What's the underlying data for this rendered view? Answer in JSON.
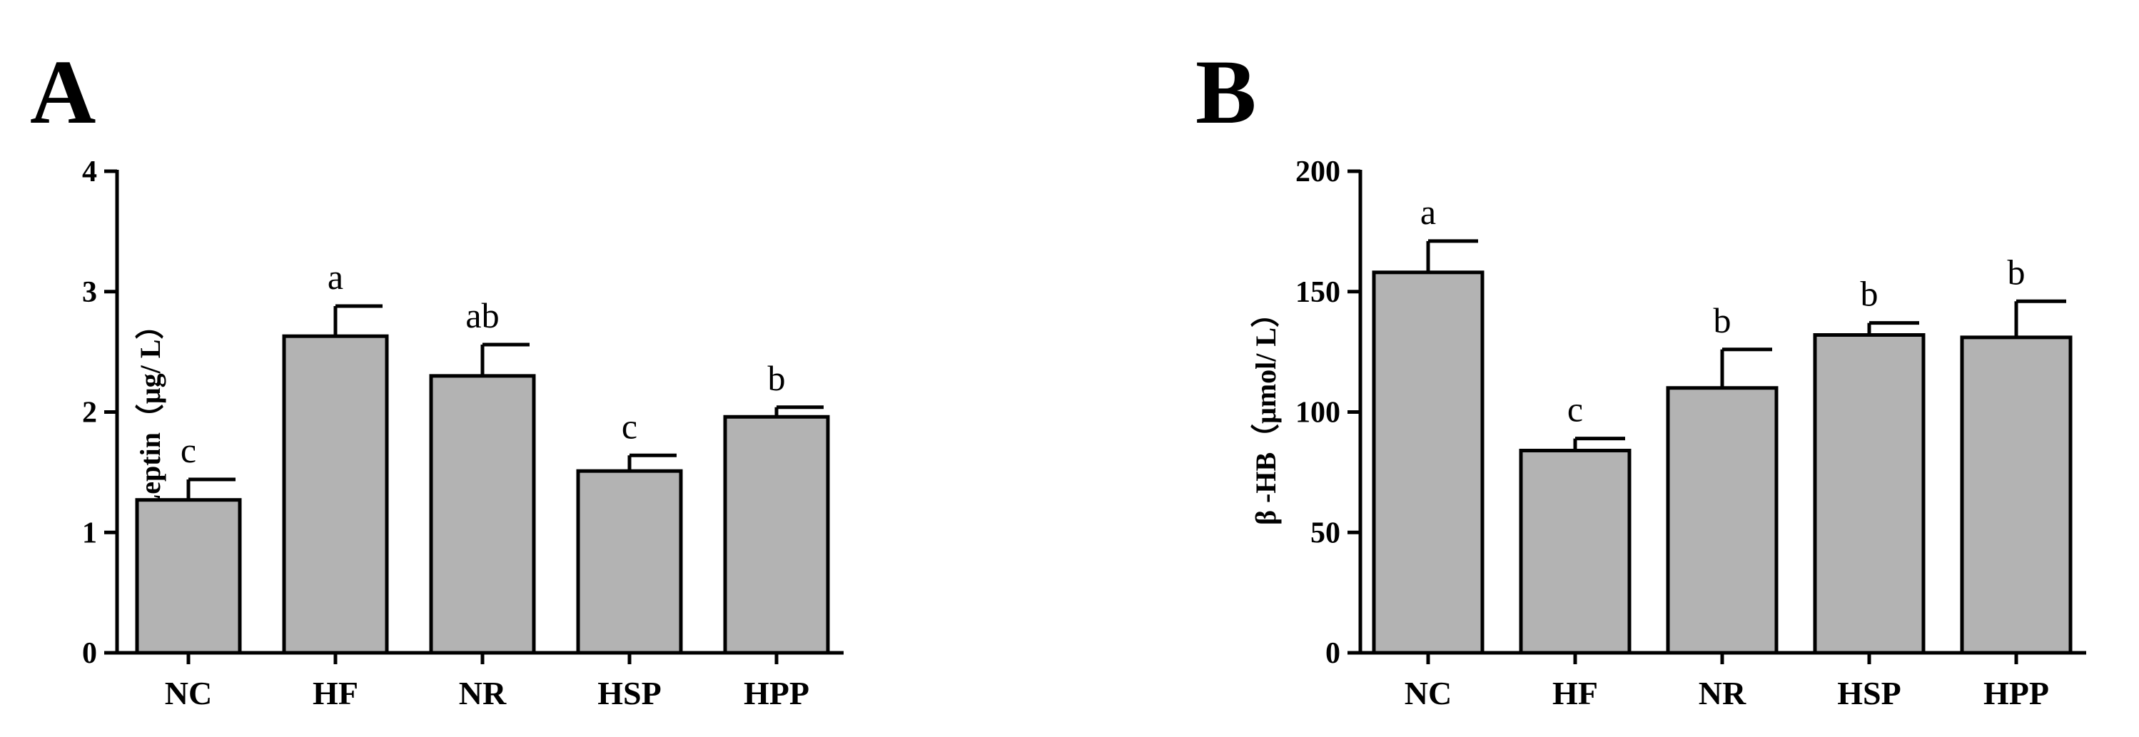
{
  "chart_data": [
    {
      "panel": "A",
      "type": "bar",
      "categories": [
        "NC",
        "HF",
        "NR",
        "HSP",
        "HPP"
      ],
      "values": [
        1.27,
        2.63,
        2.3,
        1.51,
        1.96
      ],
      "errors": [
        0.17,
        0.25,
        0.26,
        0.13,
        0.08
      ],
      "significance": [
        "c",
        "a",
        "ab",
        "c",
        "b"
      ],
      "ylabel": "Leptin（μg/ L）",
      "ylim": [
        0,
        4
      ],
      "yticks": [
        0,
        1,
        2,
        3,
        4
      ],
      "bar_color": "#b3b3b3",
      "grid": false
    },
    {
      "panel": "B",
      "type": "bar",
      "categories": [
        "NC",
        "HF",
        "NR",
        "HSP",
        "HPP"
      ],
      "values": [
        158,
        84,
        110,
        132,
        131
      ],
      "errors": [
        13,
        5,
        16,
        5,
        15
      ],
      "significance": [
        "a",
        "c",
        "b",
        "b",
        "b"
      ],
      "ylabel": "β -HB（μmol/ L）",
      "ylim": [
        0,
        200
      ],
      "yticks": [
        0,
        50,
        100,
        150,
        200
      ],
      "bar_color": "#b3b3b3",
      "grid": false
    }
  ]
}
